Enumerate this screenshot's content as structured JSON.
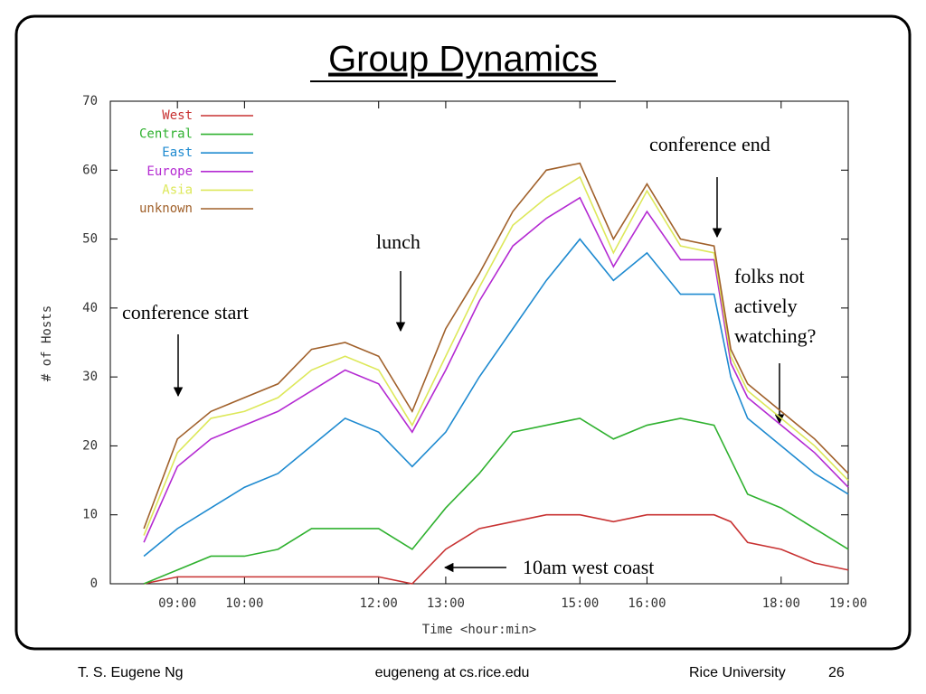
{
  "chart_data": {
    "type": "line",
    "stacked": true,
    "title": "Group Dynamics",
    "x_label": "Time <hour:min>",
    "y_label": "# of Hosts",
    "x": [
      8.5,
      9,
      9.5,
      10,
      10.5,
      11,
      11.5,
      12,
      12.5,
      13,
      13.5,
      14,
      14.5,
      15,
      15.5,
      16,
      16.5,
      17,
      17.25,
      17.5,
      18,
      18.5,
      19
    ],
    "series": [
      {
        "name": "West",
        "color": "#c83232",
        "values": [
          0,
          1,
          1,
          1,
          1,
          1,
          1,
          1,
          0,
          5,
          8,
          9,
          10,
          10,
          9,
          10,
          10,
          10,
          9,
          6,
          5,
          3,
          2
        ]
      },
      {
        "name": "Central",
        "color": "#2fb12f",
        "values": [
          0,
          1,
          3,
          3,
          4,
          7,
          7,
          7,
          5,
          6,
          8,
          13,
          13,
          14,
          12,
          13,
          14,
          13,
          9,
          7,
          6,
          5,
          3
        ]
      },
      {
        "name": "East",
        "color": "#1e8ad0",
        "values": [
          4,
          6,
          7,
          10,
          11,
          12,
          16,
          14,
          12,
          11,
          14,
          15,
          21,
          26,
          23,
          25,
          18,
          19,
          12,
          11,
          9,
          8,
          8
        ]
      },
      {
        "name": "Europe",
        "color": "#b42ad2",
        "values": [
          2,
          9,
          10,
          9,
          9,
          8,
          7,
          7,
          5,
          9,
          11,
          12,
          9,
          6,
          2,
          6,
          5,
          5,
          2,
          3,
          3,
          3,
          1
        ]
      },
      {
        "name": "Asia",
        "color": "#dde85a",
        "values": [
          1,
          2,
          3,
          2,
          2,
          3,
          2,
          2,
          1,
          2,
          2,
          3,
          3,
          3,
          2,
          3,
          2,
          1,
          1,
          1,
          1,
          1,
          1
        ]
      },
      {
        "name": "unknown",
        "color": "#a0602a",
        "values": [
          1,
          2,
          1,
          2,
          2,
          3,
          2,
          2,
          2,
          4,
          2,
          2,
          4,
          2,
          2,
          1,
          1,
          1,
          1,
          1,
          1,
          1,
          1
        ]
      }
    ],
    "xlim": [
      8,
      19
    ],
    "ylim": [
      0,
      70
    ],
    "xticks": [
      {
        "value": 9,
        "label": "09:00"
      },
      {
        "value": 10,
        "label": "10:00"
      },
      {
        "value": 12,
        "label": "12:00"
      },
      {
        "value": 13,
        "label": "13:00"
      },
      {
        "value": 15,
        "label": "15:00"
      },
      {
        "value": 16,
        "label": "16:00"
      },
      {
        "value": 18,
        "label": "18:00"
      },
      {
        "value": 19,
        "label": "19:00"
      }
    ],
    "yticks": [
      0,
      10,
      20,
      30,
      40,
      50,
      60,
      70
    ],
    "legend": "top-left",
    "annotations": [
      "conference start",
      "lunch",
      "conference end",
      "folks not",
      "actively",
      "watching?",
      "10am west coast"
    ]
  },
  "footer": {
    "author": "T. S. Eugene Ng",
    "email": "eugeneng at cs.rice.edu",
    "affiliation": "Rice University",
    "page": "26"
  }
}
